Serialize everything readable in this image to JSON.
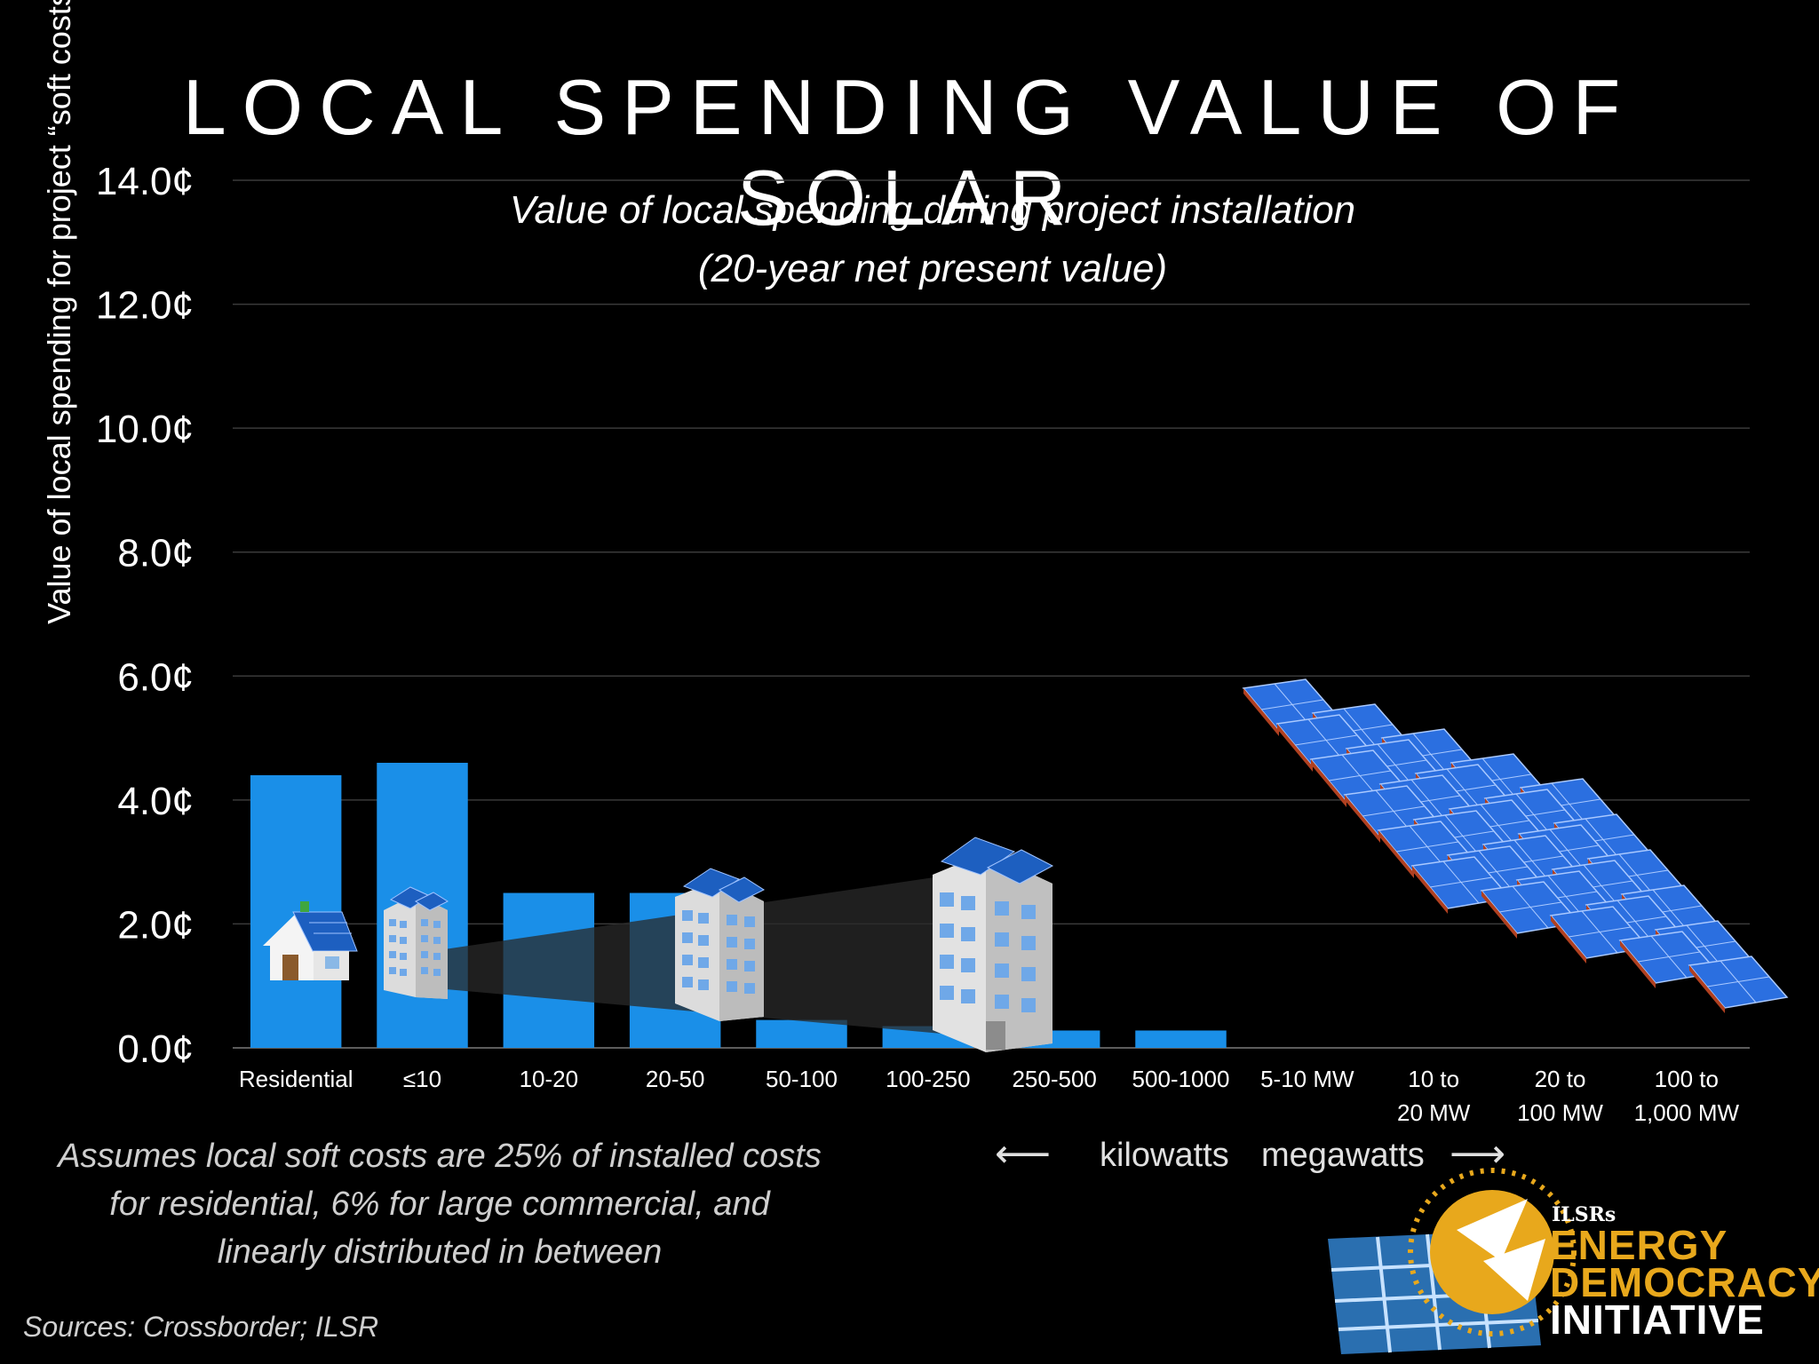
{
  "title": "LOCAL SPENDING VALUE OF SOLAR",
  "subtitle_lines": [
    "Value of local spending during project installation",
    "(20-year net present value)"
  ],
  "footnote_lines": [
    "Assumes local soft costs are 25% of installed costs",
    "for residential, 6% for large commercial, and",
    "linearly distributed in between"
  ],
  "sources": "Sources: Crossborder; ILSR",
  "units": {
    "left_arrow": "⟵",
    "kilowatts": "kilowatts",
    "megawatts": "megawatts",
    "right_arrow": "⟶"
  },
  "logo": {
    "org": "ILSRs",
    "line1": "ENERGY",
    "line2": "DEMOCRACY",
    "line3": "INITIATIVE"
  },
  "colors": {
    "bar": "#1a8fe8",
    "gold": "#e8a81c",
    "grid": "#3a3a3a"
  },
  "icons": [
    "house-icon",
    "small-building-icon",
    "medium-building-icon",
    "large-building-icon",
    "solar-array-icon",
    "logo-panel-icon",
    "logo-sun-icon"
  ],
  "chart_data": {
    "type": "bar",
    "ylabel": "Value of local spending for project “soft costs”",
    "ylim": [
      0,
      14
    ],
    "yticks": [
      0,
      2,
      4,
      6,
      8,
      10,
      12,
      14
    ],
    "ytick_labels": [
      "0.0¢",
      "2.0¢",
      "4.0¢",
      "6.0¢",
      "8.0¢",
      "10.0¢",
      "12.0¢",
      "14.0¢"
    ],
    "grid": true,
    "categories": [
      [
        "Residential"
      ],
      [
        "≤10"
      ],
      [
        "10-20"
      ],
      [
        "20-50"
      ],
      [
        "50-100"
      ],
      [
        "100-250"
      ],
      [
        "250-500"
      ],
      [
        "500-1000"
      ],
      [
        "5-10 MW"
      ],
      [
        "10 to",
        "20 MW"
      ],
      [
        "20 to",
        "100 MW"
      ],
      [
        "100 to",
        "1,000 MW"
      ]
    ],
    "values": [
      4.4,
      4.6,
      2.5,
      2.5,
      0.45,
      0.35,
      0.28,
      0.28,
      null,
      null,
      null,
      null
    ]
  }
}
